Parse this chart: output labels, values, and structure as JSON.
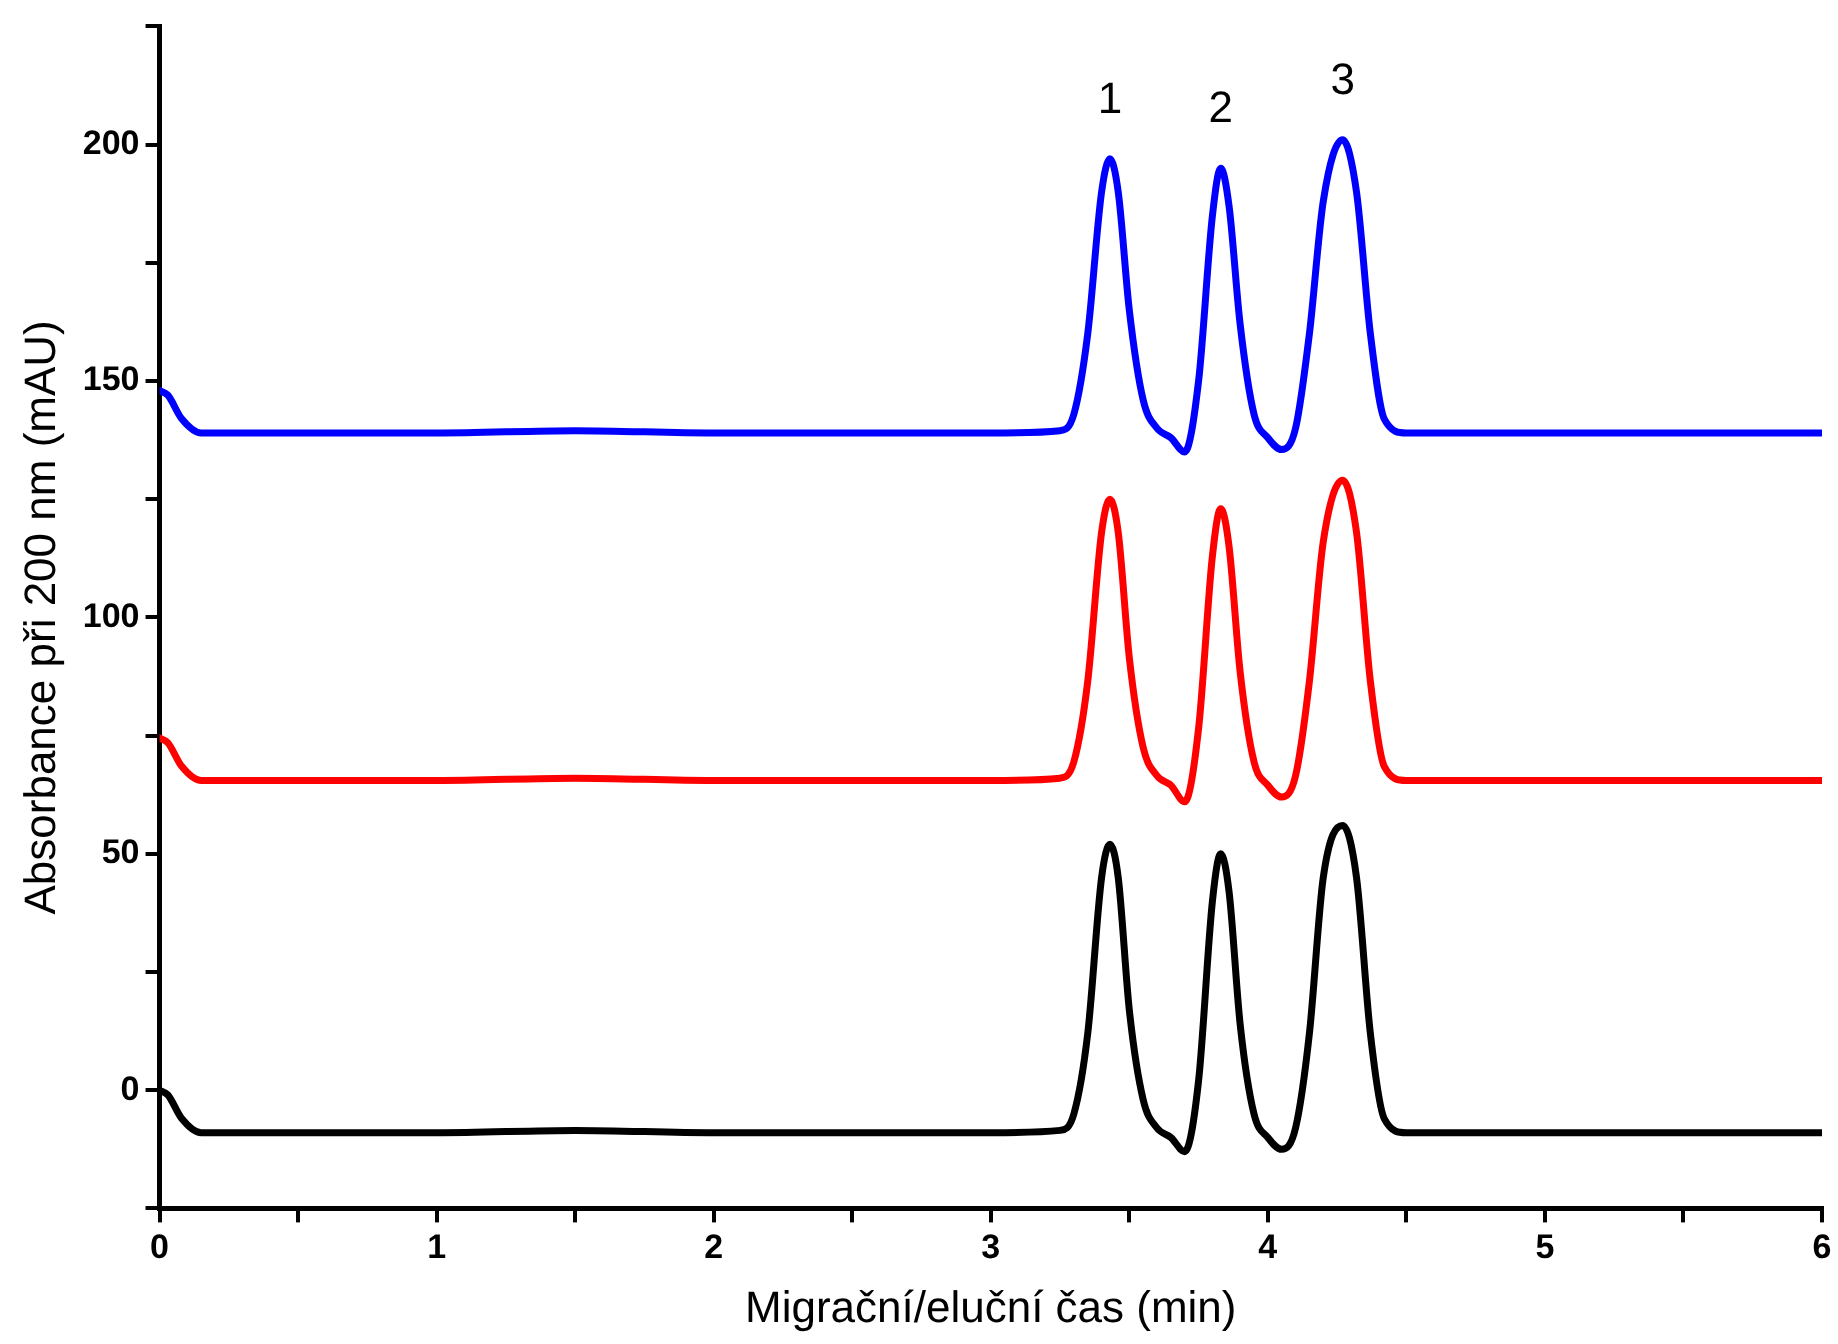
{
  "chart_data": {
    "type": "line",
    "xlabel": "Migrační/eluční čas (min)",
    "ylabel": "Absorbance při 200 nm (mAU)",
    "x": [
      0,
      0.03,
      0.08,
      0.15,
      0.25,
      1,
      1.5,
      2,
      3,
      3.25,
      3.3,
      3.35,
      3.4,
      3.43,
      3.46,
      3.5,
      3.55,
      3.6,
      3.65,
      3.7,
      3.75,
      3.8,
      3.83,
      3.86,
      3.9,
      3.95,
      4,
      4.05,
      4.1,
      4.15,
      4.2,
      4.27,
      4.32,
      4.37,
      4.42,
      4.5,
      5,
      6
    ],
    "series": [
      {
        "color": "#0000ff",
        "values": [
          148,
          147,
          142,
          139,
          139,
          139,
          139.5,
          139,
          139,
          139.5,
          143,
          160,
          190,
          197,
          190,
          165,
          146,
          140,
          138,
          135,
          150,
          185,
          195,
          187,
          162,
          143,
          138,
          135.5,
          140,
          160,
          188,
          201,
          190,
          160,
          142,
          139,
          139,
          139
        ]
      },
      {
        "color": "#ff0000",
        "values": [
          74.5,
          73.5,
          68.5,
          65.5,
          65.5,
          65.5,
          66,
          65.5,
          65.5,
          66,
          69.5,
          86.5,
          118,
          125,
          118,
          91.5,
          72.5,
          66.5,
          64.5,
          61,
          76.5,
          113,
          123,
          115,
          88.5,
          69.5,
          64.5,
          62,
          66.5,
          86.5,
          116,
          129,
          118,
          86.5,
          68.5,
          65.5,
          65.5,
          65.5
        ]
      },
      {
        "color": "#000000",
        "values": [
          0,
          -1,
          -6,
          -9,
          -9,
          -9,
          -8.5,
          -9,
          -9,
          -8.5,
          -5,
          12,
          45,
          52,
          45,
          17,
          -2,
          -8,
          -10,
          -13,
          2,
          40,
          50,
          42,
          14,
          -5,
          -10,
          -12.5,
          -8,
          12,
          45,
          56,
          45,
          12,
          -6,
          -9,
          -9,
          -9
        ]
      }
    ],
    "xlim": [
      0,
      6
    ],
    "xticks": [
      0,
      {
        "value": 0.5,
        "label": null
      },
      1,
      {
        "value": 1.5,
        "label": null
      },
      2,
      {
        "value": 2.5,
        "label": null
      },
      3,
      {
        "value": 3.5,
        "label": null
      },
      4,
      {
        "value": 4.5,
        "label": null
      },
      5,
      {
        "value": 5.5,
        "label": null
      },
      6
    ],
    "ylim": [
      -25,
      225
    ],
    "yticks": [
      {
        "value": -25,
        "label": null
      },
      0,
      {
        "value": 25,
        "label": null
      },
      50,
      {
        "value": 75,
        "label": null
      },
      100,
      {
        "value": 125,
        "label": null
      },
      150,
      {
        "value": 175,
        "label": null
      },
      200,
      {
        "value": 225,
        "label": null
      }
    ],
    "annotations": [
      "1",
      "2",
      "3"
    ],
    "grid": false,
    "legend": false,
    "marker": "none",
    "line_style": "solid"
  }
}
